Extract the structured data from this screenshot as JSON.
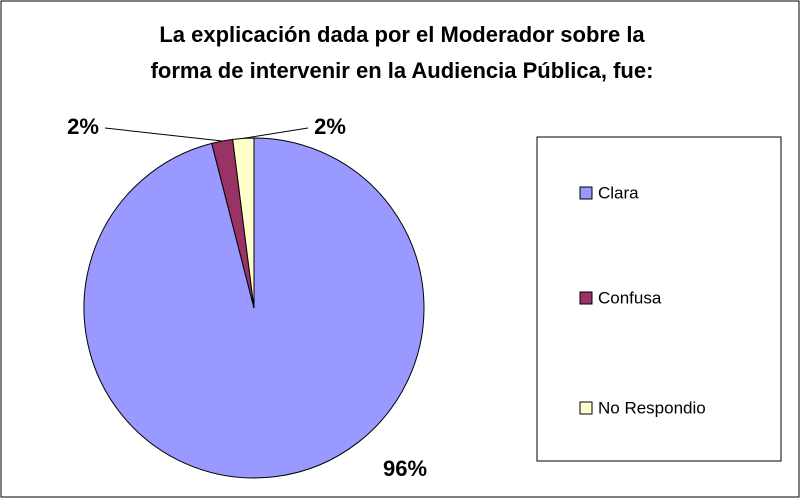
{
  "chart_data": {
    "type": "pie",
    "title": [
      "La explicación dada por el Moderador sobre la",
      "forma de intervenir en la Audiencia Pública, fue:"
    ],
    "categories": [
      "Clara",
      "Confusa",
      "No Respondio"
    ],
    "values": [
      96,
      2,
      2
    ],
    "value_labels": [
      "96%",
      "2%",
      "2%"
    ],
    "colors": [
      "#9999ff",
      "#993366",
      "#ffffcc"
    ],
    "legend": "right"
  }
}
